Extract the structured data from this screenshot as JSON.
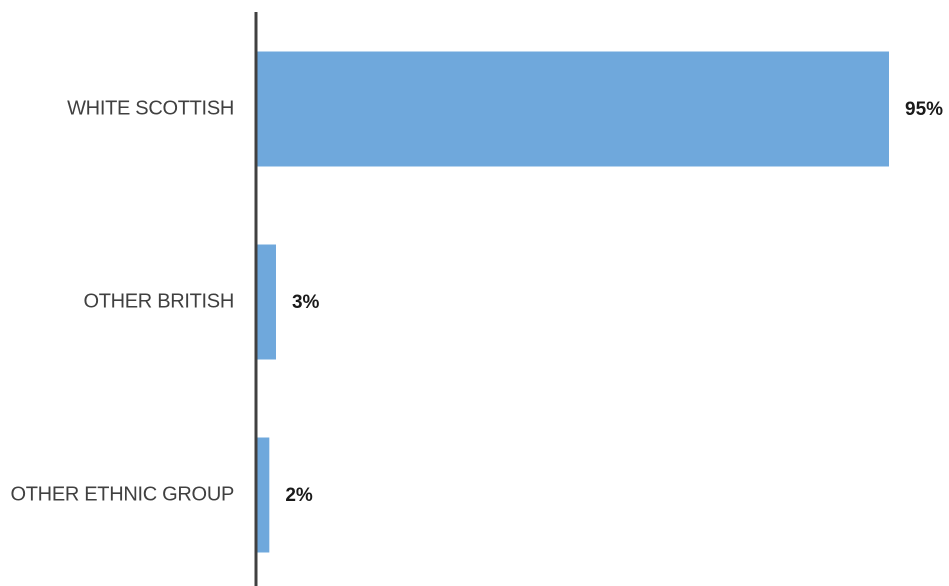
{
  "chart_data": {
    "type": "bar",
    "orientation": "horizontal",
    "title": "",
    "xlabel": "",
    "ylabel": "",
    "categories": [
      "WHITE SCOTTISH",
      "OTHER BRITISH",
      "OTHER ETHNIC GROUP"
    ],
    "values": [
      95,
      3,
      2
    ],
    "value_labels": [
      "95%",
      "3%",
      "2%"
    ],
    "xlim": [
      0,
      95
    ],
    "grid": false,
    "legend": "none",
    "colors": {
      "bar": "#6fa8dc",
      "axis": "#404040",
      "category_text": "#404040",
      "value_text": "#1a1a1a"
    }
  }
}
